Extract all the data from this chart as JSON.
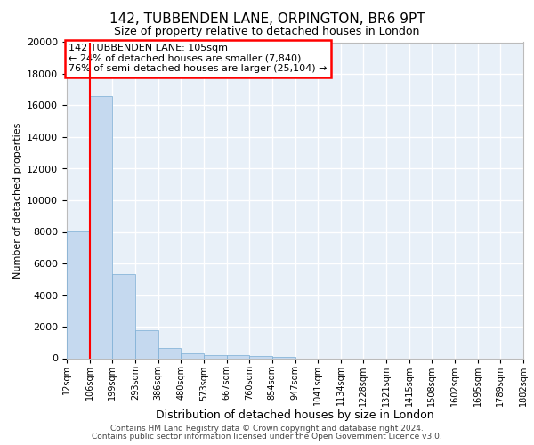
{
  "title_line1": "142, TUBBENDEN LANE, ORPINGTON, BR6 9PT",
  "title_line2": "Size of property relative to detached houses in London",
  "xlabel": "Distribution of detached houses by size in London",
  "ylabel": "Number of detached properties",
  "footer_line1": "Contains HM Land Registry data © Crown copyright and database right 2024.",
  "footer_line2": "Contains public sector information licensed under the Open Government Licence v3.0.",
  "annotation_line1": "142 TUBBENDEN LANE: 105sqm",
  "annotation_line2": "← 24% of detached houses are smaller (7,840)",
  "annotation_line3": "76% of semi-detached houses are larger (25,104) →",
  "bar_color": "#c5d9ef",
  "bar_edge_color": "#7aadd4",
  "red_line_x": 1.0,
  "bin_labels": [
    "12sqm",
    "106sqm",
    "199sqm",
    "293sqm",
    "386sqm",
    "480sqm",
    "573sqm",
    "667sqm",
    "760sqm",
    "854sqm",
    "947sqm",
    "1041sqm",
    "1134sqm",
    "1228sqm",
    "1321sqm",
    "1415sqm",
    "1508sqm",
    "1602sqm",
    "1695sqm",
    "1789sqm",
    "1882sqm"
  ],
  "bar_heights": [
    8050,
    16600,
    5300,
    1800,
    650,
    320,
    200,
    170,
    130,
    110,
    0,
    0,
    0,
    0,
    0,
    0,
    0,
    0,
    0,
    0
  ],
  "ylim": [
    0,
    20000
  ],
  "yticks": [
    0,
    2000,
    4000,
    6000,
    8000,
    10000,
    12000,
    14000,
    16000,
    18000,
    20000
  ],
  "background_color": "#e8f0f8",
  "grid_color": "#ffffff",
  "title_fontsize": 11,
  "subtitle_fontsize": 9,
  "footer_fontsize": 6.5,
  "ylabel_fontsize": 8,
  "xlabel_fontsize": 9,
  "tick_fontsize": 8,
  "xtick_fontsize": 7,
  "annot_fontsize": 8
}
